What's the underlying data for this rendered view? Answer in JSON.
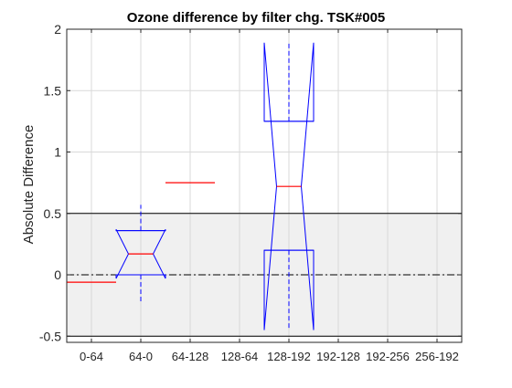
{
  "chart_data": {
    "type": "box",
    "title": "Ozone difference by filter chg. TSK#005",
    "xlabel": "",
    "ylabel": "Absolute Difference",
    "ylim": [
      -0.55,
      2.0
    ],
    "y_ticks": [
      -0.5,
      0,
      0.5,
      1,
      1.5,
      2
    ],
    "y_tick_labels": [
      "-0.5",
      "0",
      "0.5",
      "1",
      "1.5",
      "2"
    ],
    "categories": [
      "0-64",
      "64-0",
      "64-128",
      "128-64",
      "128-192",
      "192-128",
      "192-256",
      "256-192"
    ],
    "grid": true,
    "shaded_band": [
      -0.5,
      0.5
    ],
    "reference_line": 0,
    "boxes": [
      {
        "category": "0-64",
        "median": -0.06,
        "q1": -0.06,
        "q3": -0.06,
        "whisker_low": -0.06,
        "whisker_high": -0.06,
        "notch_low": -0.06,
        "notch_high": -0.06
      },
      {
        "category": "64-0",
        "median": 0.17,
        "q1": 0.0,
        "q3": 0.36,
        "whisker_low": -0.22,
        "whisker_high": 0.57,
        "notch_low": -0.03,
        "notch_high": 0.37
      },
      {
        "category": "64-128",
        "median": 0.75,
        "q1": 0.75,
        "q3": 0.75,
        "whisker_low": 0.75,
        "whisker_high": 0.75,
        "notch_low": 0.75,
        "notch_high": 0.75
      },
      {
        "category": "128-192",
        "median": 0.72,
        "q1": 0.2,
        "q3": 1.25,
        "whisker_low": -0.44,
        "whisker_high": 1.9,
        "notch_low": -0.45,
        "notch_high": 1.89
      }
    ],
    "colors": {
      "box": "#0000ff",
      "median": "#ff0000",
      "band": "#f0f0f0",
      "grid": "#d9d9d9",
      "axis": "#262626"
    }
  }
}
